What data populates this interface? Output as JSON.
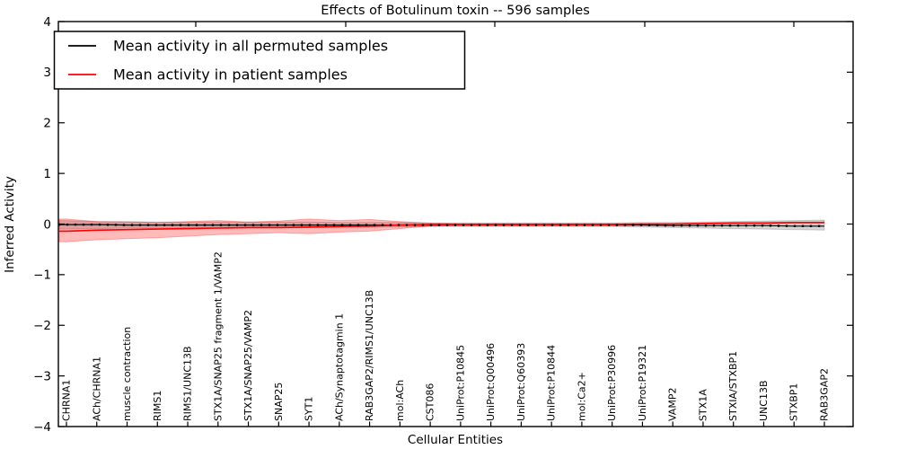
{
  "chart_data": {
    "type": "line",
    "title": "Effects of Botulinum toxin -- 596 samples",
    "xlabel": "Cellular Entities",
    "ylabel": "Inferred Activity",
    "ylim": [
      -4,
      4
    ],
    "y_ticks": [
      4,
      3,
      2,
      1,
      0,
      -1,
      -2,
      -3,
      -4
    ],
    "y_tick_labels": [
      "4",
      "3",
      "2",
      "1",
      "0",
      "−1",
      "−2",
      "−3",
      "−4"
    ],
    "grid": false,
    "legend_position": "upper left",
    "categories": [
      "CHRNA1",
      "ACh/CHRNA1",
      "muscle contraction",
      "RIMS1",
      "RIMS1/UNC13B",
      "STX1A/SNAP25 fragment 1/VAMP2",
      "STX1A/SNAP25/VAMP2",
      "SNAP25",
      "SYT1",
      "ACh/Synaptotagmin 1",
      "RAB3GAP2/RIMS1/UNC13B",
      "mol:ACh",
      "CST086",
      "UniProt:P10845",
      "UniProt:Q00496",
      "UniProt:Q60393",
      "UniProt:P10844",
      "mol:Ca2+",
      "UniProt:P30996",
      "UniProt:P19321",
      "VAMP2",
      "STX1A",
      "STXIA/STXBP1",
      "UNC13B",
      "STXBP1",
      "RAB3GAP2"
    ],
    "series": [
      {
        "name": "Mean activity in all permuted samples",
        "color": "#000000",
        "marker": "square-dots",
        "values": [
          -0.01,
          -0.01,
          -0.02,
          -0.02,
          -0.02,
          -0.02,
          -0.02,
          -0.02,
          -0.02,
          -0.02,
          -0.02,
          -0.02,
          -0.02,
          -0.02,
          -0.02,
          -0.02,
          -0.02,
          -0.02,
          -0.02,
          -0.02,
          -0.03,
          -0.03,
          -0.03,
          -0.03,
          -0.04,
          -0.04
        ],
        "band_upper": [
          0.07,
          0.05,
          0.05,
          0.04,
          0.04,
          0.04,
          0.04,
          0.04,
          0.04,
          0.03,
          0.03,
          0.03,
          0.02,
          0.02,
          0.02,
          0.02,
          0.02,
          0.02,
          0.02,
          0.03,
          0.03,
          0.04,
          0.05,
          0.06,
          0.07,
          0.08
        ],
        "band_lower": [
          -0.1,
          -0.09,
          -0.08,
          -0.08,
          -0.07,
          -0.07,
          -0.07,
          -0.07,
          -0.07,
          -0.06,
          -0.06,
          -0.06,
          -0.05,
          -0.05,
          -0.05,
          -0.05,
          -0.05,
          -0.05,
          -0.05,
          -0.06,
          -0.07,
          -0.08,
          -0.09,
          -0.1,
          -0.11,
          -0.12
        ],
        "band_fill": "rgba(0,0,0,0.16)"
      },
      {
        "name": "Mean activity in patient samples",
        "color": "#ff0000",
        "marker": "none",
        "values": [
          -0.14,
          -0.12,
          -0.11,
          -0.1,
          -0.09,
          -0.08,
          -0.07,
          -0.07,
          -0.06,
          -0.05,
          -0.04,
          -0.02,
          -0.01,
          -0.01,
          -0.01,
          -0.01,
          -0.01,
          -0.01,
          -0.01,
          0.0,
          0.0,
          0.01,
          0.02,
          0.02,
          0.03,
          0.03
        ],
        "band_upper": [
          0.1,
          0.05,
          0.04,
          0.03,
          0.05,
          0.07,
          0.04,
          0.06,
          0.1,
          0.07,
          0.09,
          0.05,
          0.02,
          0.01,
          0.01,
          0.01,
          0.01,
          0.01,
          0.01,
          0.01,
          0.01,
          0.02,
          0.03,
          0.03,
          0.04,
          0.04
        ],
        "band_lower": [
          -0.35,
          -0.31,
          -0.29,
          -0.27,
          -0.24,
          -0.21,
          -0.19,
          -0.17,
          -0.19,
          -0.16,
          -0.14,
          -0.09,
          -0.04,
          -0.02,
          -0.02,
          -0.02,
          -0.02,
          -0.02,
          -0.02,
          -0.02,
          -0.01,
          0.0,
          0.01,
          0.01,
          0.02,
          0.02
        ],
        "band_fill": "rgba(255,0,0,0.27)"
      }
    ]
  }
}
